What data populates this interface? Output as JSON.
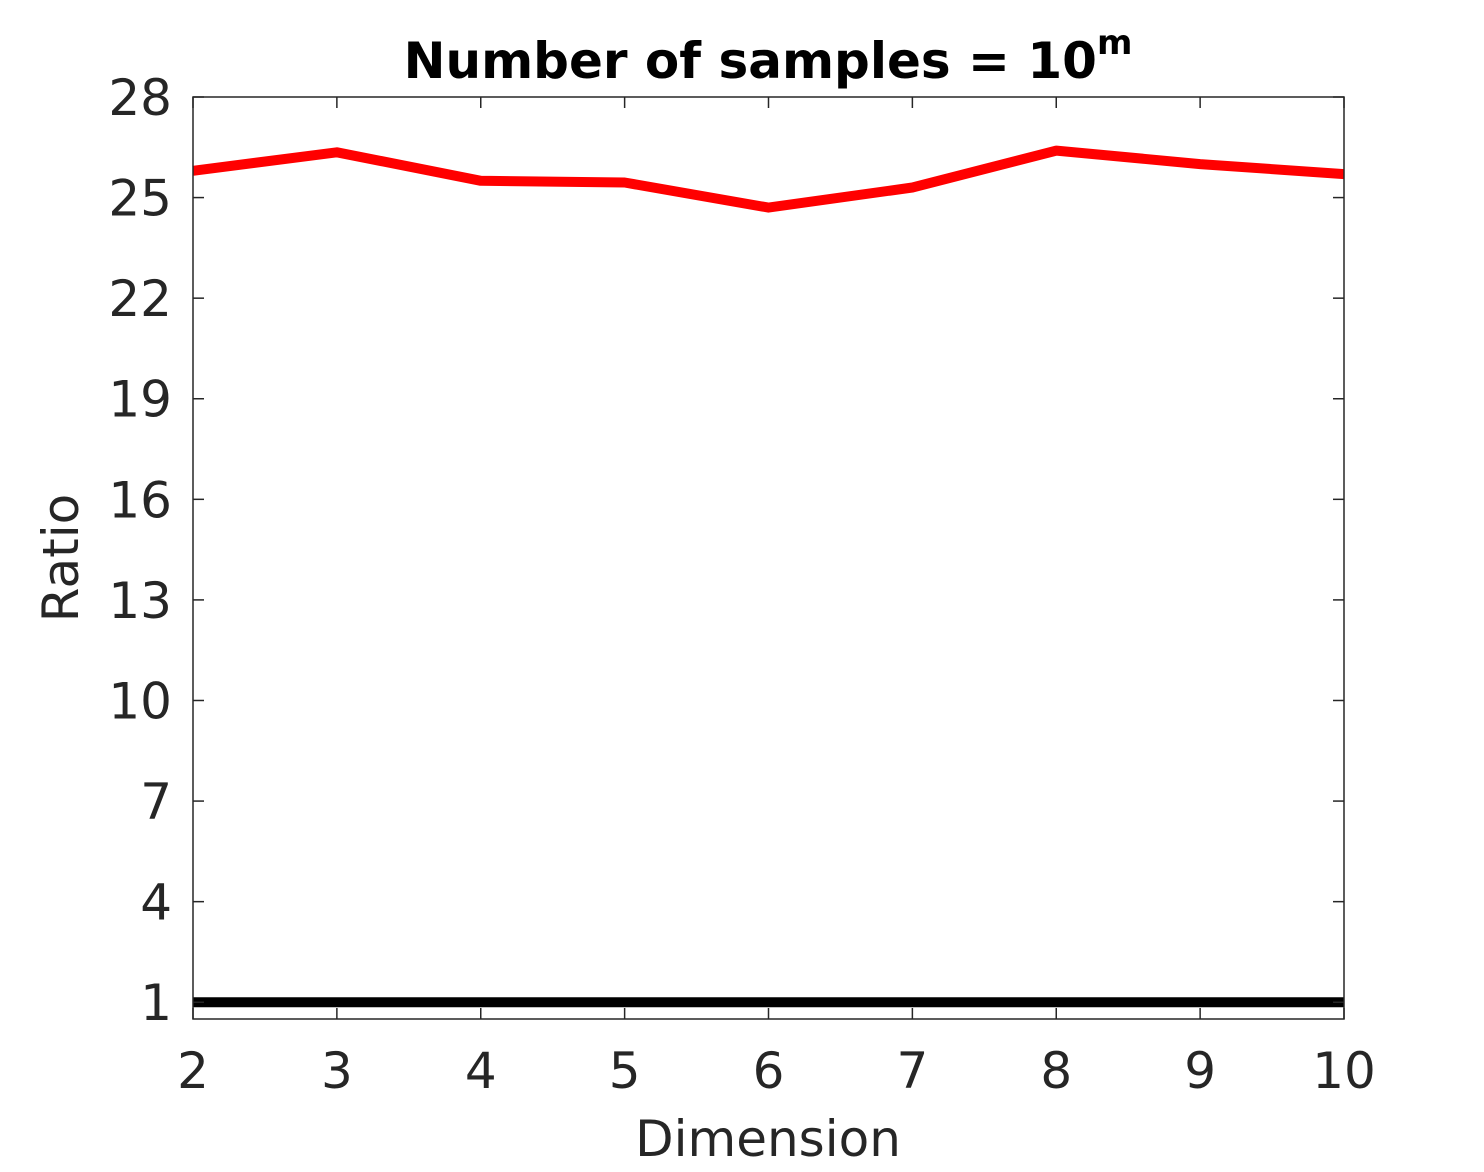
{
  "chart_data": {
    "type": "line",
    "title": "Number of samples = 10",
    "title_superscript": "m",
    "xlabel": "Dimension",
    "ylabel": "Ratio",
    "xlim": [
      2,
      10
    ],
    "ylim": [
      0.5,
      28
    ],
    "x_ticks": [
      2,
      3,
      4,
      5,
      6,
      7,
      8,
      9,
      10
    ],
    "y_ticks": [
      1,
      4,
      7,
      10,
      13,
      16,
      19,
      22,
      25,
      28
    ],
    "grid": false,
    "x": [
      2,
      3,
      4,
      5,
      6,
      7,
      8,
      9,
      10
    ],
    "series": [
      {
        "color": "#ff0000",
        "values": [
          25.8,
          26.35,
          25.5,
          25.45,
          24.7,
          25.3,
          26.4,
          26.0,
          25.7
        ]
      },
      {
        "color": "#000000",
        "values": [
          1,
          1,
          1,
          1,
          1,
          1,
          1,
          1,
          1
        ]
      }
    ]
  }
}
